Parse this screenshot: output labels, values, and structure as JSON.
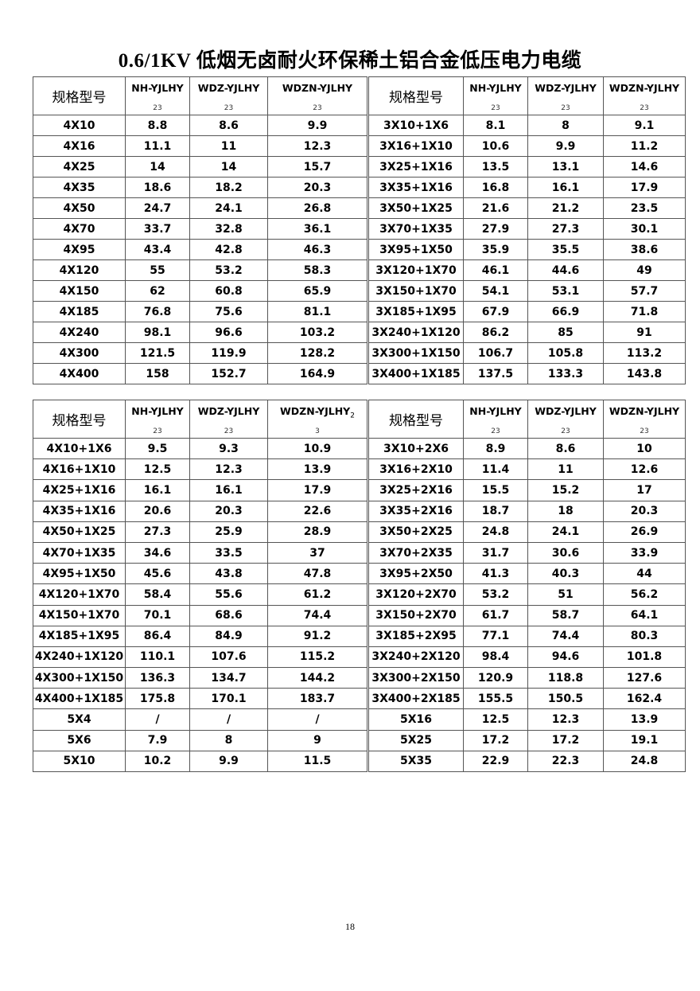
{
  "title": "0.6/1KV 低烟无卤耐火环保稀土铝合金低压电力电缆",
  "page_number": "18",
  "tables": [
    {
      "headers": [
        {
          "text": "规格型号",
          "sub": ""
        },
        {
          "text": "NH-YJLHY",
          "sub": "23"
        },
        {
          "text": "WDZ-YJLHY",
          "sub": "23"
        },
        {
          "text": "WDZN-YJLHY",
          "sub": "23"
        }
      ],
      "rows": [
        [
          "4X10",
          "8.8",
          "8.6",
          "9.9"
        ],
        [
          "4X16",
          "11.1",
          "11",
          "12.3"
        ],
        [
          "4X25",
          "14",
          "14",
          "15.7"
        ],
        [
          "4X35",
          "18.6",
          "18.2",
          "20.3"
        ],
        [
          "4X50",
          "24.7",
          "24.1",
          "26.8"
        ],
        [
          "4X70",
          "33.7",
          "32.8",
          "36.1"
        ],
        [
          "4X95",
          "43.4",
          "42.8",
          "46.3"
        ],
        [
          "4X120",
          "55",
          "53.2",
          "58.3"
        ],
        [
          "4X150",
          "62",
          "60.8",
          "65.9"
        ],
        [
          "4X185",
          "76.8",
          "75.6",
          "81.1"
        ],
        [
          "4X240",
          "98.1",
          "96.6",
          "103.2"
        ],
        [
          "4X300",
          "121.5",
          "119.9",
          "128.2"
        ],
        [
          "4X400",
          "158",
          "152.7",
          "164.9"
        ]
      ]
    },
    {
      "headers": [
        {
          "text": "规格型号",
          "sub": ""
        },
        {
          "text": "NH-YJLHY",
          "sub": "23"
        },
        {
          "text": "WDZ-YJLHY",
          "sub": "23"
        },
        {
          "text": "WDZN-YJLHY",
          "sub": "23"
        }
      ],
      "rows": [
        [
          "3X10+1X6",
          "8.1",
          "8",
          "9.1"
        ],
        [
          "3X16+1X10",
          "10.6",
          "9.9",
          "11.2"
        ],
        [
          "3X25+1X16",
          "13.5",
          "13.1",
          "14.6"
        ],
        [
          "3X35+1X16",
          "16.8",
          "16.1",
          "17.9"
        ],
        [
          "3X50+1X25",
          "21.6",
          "21.2",
          "23.5"
        ],
        [
          "3X70+1X35",
          "27.9",
          "27.3",
          "30.1"
        ],
        [
          "3X95+1X50",
          "35.9",
          "35.5",
          "38.6"
        ],
        [
          "3X120+1X70",
          "46.1",
          "44.6",
          "49"
        ],
        [
          "3X150+1X70",
          "54.1",
          "53.1",
          "57.7"
        ],
        [
          "3X185+1X95",
          "67.9",
          "66.9",
          "71.8"
        ],
        [
          "3X240+1X120",
          "86.2",
          "85",
          "91"
        ],
        [
          "3X300+1X150",
          "106.7",
          "105.8",
          "113.2"
        ],
        [
          "3X400+1X185",
          "137.5",
          "133.3",
          "143.8"
        ]
      ]
    },
    {
      "headers": [
        {
          "text": "规格型号",
          "sub": ""
        },
        {
          "text": "NH-YJLHY",
          "sub": "23"
        },
        {
          "text": "WDZ-YJLHY",
          "sub": "23"
        },
        {
          "text": "WDZN-YJLHY",
          "sup": "2",
          "sub": "3"
        }
      ],
      "rows": [
        [
          "4X10+1X6",
          "9.5",
          "9.3",
          "10.9"
        ],
        [
          "4X16+1X10",
          "12.5",
          "12.3",
          "13.9"
        ],
        [
          "4X25+1X16",
          "16.1",
          "16.1",
          "17.9"
        ],
        [
          "4X35+1X16",
          "20.6",
          "20.3",
          "22.6"
        ],
        [
          "4X50+1X25",
          "27.3",
          "25.9",
          "28.9"
        ],
        [
          "4X70+1X35",
          "34.6",
          "33.5",
          "37"
        ],
        [
          "4X95+1X50",
          "45.6",
          "43.8",
          "47.8"
        ],
        [
          "4X120+1X70",
          "58.4",
          "55.6",
          "61.2"
        ],
        [
          "4X150+1X70",
          "70.1",
          "68.6",
          "74.4"
        ],
        [
          "4X185+1X95",
          "86.4",
          "84.9",
          "91.2"
        ],
        [
          "4X240+1X120",
          "110.1",
          "107.6",
          "115.2"
        ],
        [
          "4X300+1X150",
          "136.3",
          "134.7",
          "144.2"
        ],
        [
          "4X400+1X185",
          "175.8",
          "170.1",
          "183.7"
        ],
        [
          "5X4",
          "/",
          "/",
          "/"
        ],
        [
          "5X6",
          "7.9",
          "8",
          "9"
        ],
        [
          "5X10",
          "10.2",
          "9.9",
          "11.5"
        ]
      ]
    },
    {
      "headers": [
        {
          "text": "规格型号",
          "sub": ""
        },
        {
          "text": "NH-YJLHY",
          "sub": "23"
        },
        {
          "text": "WDZ-YJLHY",
          "sub": "23"
        },
        {
          "text": "WDZN-YJLHY",
          "sub": "23"
        }
      ],
      "rows": [
        [
          "3X10+2X6",
          "8.9",
          "8.6",
          "10"
        ],
        [
          "3X16+2X10",
          "11.4",
          "11",
          "12.6"
        ],
        [
          "3X25+2X16",
          "15.5",
          "15.2",
          "17"
        ],
        [
          "3X35+2X16",
          "18.7",
          "18",
          "20.3"
        ],
        [
          "3X50+2X25",
          "24.8",
          "24.1",
          "26.9"
        ],
        [
          "3X70+2X35",
          "31.7",
          "30.6",
          "33.9"
        ],
        [
          "3X95+2X50",
          "41.3",
          "40.3",
          "44"
        ],
        [
          "3X120+2X70",
          "53.2",
          "51",
          "56.2"
        ],
        [
          "3X150+2X70",
          "61.7",
          "58.7",
          "64.1"
        ],
        [
          "3X185+2X95",
          "77.1",
          "74.4",
          "80.3"
        ],
        [
          "3X240+2X120",
          "98.4",
          "94.6",
          "101.8"
        ],
        [
          "3X300+2X150",
          "120.9",
          "118.8",
          "127.6"
        ],
        [
          "3X400+2X185",
          "155.5",
          "150.5",
          "162.4"
        ],
        [
          "5X16",
          "12.5",
          "12.3",
          "13.9"
        ],
        [
          "5X25",
          "17.2",
          "17.2",
          "19.1"
        ],
        [
          "5X35",
          "22.9",
          "22.3",
          "24.8"
        ]
      ]
    }
  ]
}
